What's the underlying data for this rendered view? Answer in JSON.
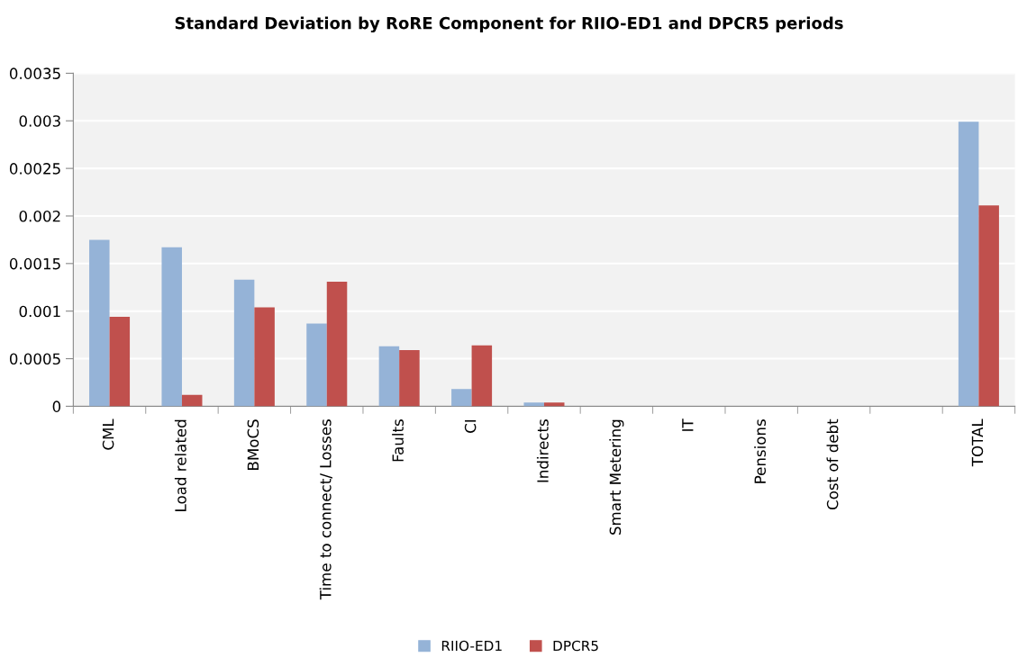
{
  "chart_data": {
    "type": "bar",
    "title": "Standard Deviation by RoRE Component for RIIO-ED1 and DPCR5 periods",
    "categories": [
      "CML",
      "Load related",
      "BMoCS",
      "Time to connect/ Losses",
      "Faults",
      "CI",
      "Indirects",
      "Smart Metering",
      "IT",
      "Pensions",
      "Cost of debt",
      null,
      "TOTAL"
    ],
    "series": [
      {
        "name": "RIIO-ED1",
        "color": "#95b3d7",
        "values": [
          0.00175,
          0.00167,
          0.00133,
          0.00087,
          0.00063,
          0.00018,
          4e-05,
          0,
          0,
          0,
          0,
          null,
          0.00299
        ]
      },
      {
        "name": "DPCR5",
        "color": "#c0504d",
        "values": [
          0.00094,
          0.00012,
          0.00104,
          0.00131,
          0.00059,
          0.00064,
          4e-05,
          0,
          0,
          0,
          0,
          null,
          0.00211
        ]
      }
    ],
    "ylim": [
      0,
      0.0035
    ],
    "yticks": [
      0,
      0.0005,
      0.001,
      0.0015,
      0.002,
      0.0025,
      0.003,
      0.0035
    ],
    "grid": "y",
    "legend": "bottom"
  }
}
